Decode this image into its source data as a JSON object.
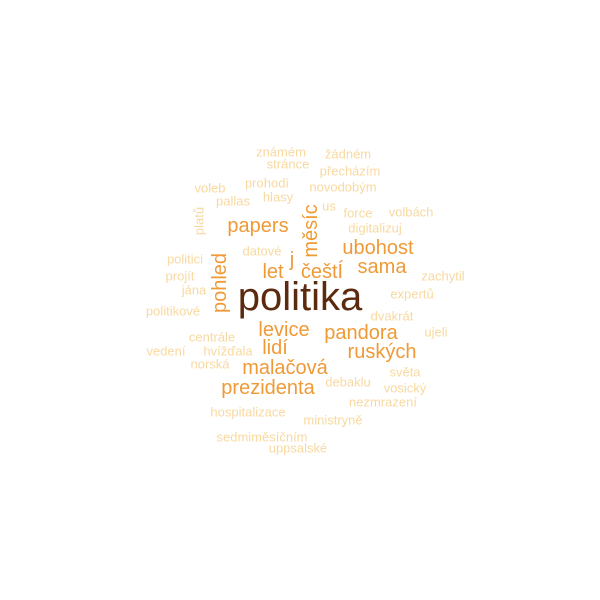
{
  "word_cloud": {
    "words": [
      {
        "text": "politika",
        "tier": 0,
        "vertical": false
      },
      {
        "text": "papers",
        "tier": 1,
        "vertical": false
      },
      {
        "text": "měsíc",
        "tier": 1,
        "vertical": true
      },
      {
        "text": "ubohost",
        "tier": 1,
        "vertical": false
      },
      {
        "text": "let",
        "tier": 1,
        "vertical": false
      },
      {
        "text": "j",
        "tier": 1,
        "vertical": false
      },
      {
        "text": "češtÍ",
        "tier": 1,
        "vertical": false
      },
      {
        "text": "sama",
        "tier": 1,
        "vertical": false
      },
      {
        "text": "pohled",
        "tier": 1,
        "vertical": true
      },
      {
        "text": "levice",
        "tier": 1,
        "vertical": false
      },
      {
        "text": "pandora",
        "tier": 1,
        "vertical": false
      },
      {
        "text": "lidí",
        "tier": 1,
        "vertical": false
      },
      {
        "text": "ruských",
        "tier": 1,
        "vertical": false
      },
      {
        "text": "malačová",
        "tier": 1,
        "vertical": false
      },
      {
        "text": "prezidenta",
        "tier": 1,
        "vertical": false
      },
      {
        "text": "známém",
        "tier": 2,
        "vertical": false
      },
      {
        "text": "žádném",
        "tier": 2,
        "vertical": false
      },
      {
        "text": "stránce",
        "tier": 2,
        "vertical": false
      },
      {
        "text": "přecházím",
        "tier": 2,
        "vertical": false
      },
      {
        "text": "prohodí",
        "tier": 2,
        "vertical": false
      },
      {
        "text": "voleb",
        "tier": 2,
        "vertical": false
      },
      {
        "text": "novodobým",
        "tier": 2,
        "vertical": false
      },
      {
        "text": "pallas",
        "tier": 2,
        "vertical": false
      },
      {
        "text": "hlasy",
        "tier": 2,
        "vertical": false
      },
      {
        "text": "us",
        "tier": 2,
        "vertical": false
      },
      {
        "text": "force",
        "tier": 2,
        "vertical": false
      },
      {
        "text": "volbách",
        "tier": 2,
        "vertical": false
      },
      {
        "text": "platů",
        "tier": 2,
        "vertical": true
      },
      {
        "text": "digitalizuj",
        "tier": 2,
        "vertical": false
      },
      {
        "text": "datové",
        "tier": 2,
        "vertical": false
      },
      {
        "text": "politici",
        "tier": 2,
        "vertical": false
      },
      {
        "text": "projít",
        "tier": 2,
        "vertical": false
      },
      {
        "text": "zachytil",
        "tier": 2,
        "vertical": false
      },
      {
        "text": "jána",
        "tier": 2,
        "vertical": false
      },
      {
        "text": "expertů",
        "tier": 2,
        "vertical": false
      },
      {
        "text": "politikové",
        "tier": 2,
        "vertical": false
      },
      {
        "text": "dvakrát",
        "tier": 2,
        "vertical": false
      },
      {
        "text": "centrále",
        "tier": 2,
        "vertical": false
      },
      {
        "text": "ujeli",
        "tier": 2,
        "vertical": false
      },
      {
        "text": "vedení",
        "tier": 2,
        "vertical": false
      },
      {
        "text": "hvížďala",
        "tier": 2,
        "vertical": false
      },
      {
        "text": "norská",
        "tier": 2,
        "vertical": false
      },
      {
        "text": "světa",
        "tier": 2,
        "vertical": false
      },
      {
        "text": "debaklu",
        "tier": 2,
        "vertical": false
      },
      {
        "text": "vosický",
        "tier": 2,
        "vertical": false
      },
      {
        "text": "nezmrazení",
        "tier": 2,
        "vertical": false
      },
      {
        "text": "hospitalizace",
        "tier": 2,
        "vertical": false
      },
      {
        "text": "ministryně",
        "tier": 2,
        "vertical": false
      },
      {
        "text": "sedmiměsíčním",
        "tier": 2,
        "vertical": false
      },
      {
        "text": "uppsalské",
        "tier": 2,
        "vertical": false
      }
    ],
    "colors": [
      "#5c2a0e",
      "#ef9a36",
      "#f8d9a0"
    ]
  }
}
